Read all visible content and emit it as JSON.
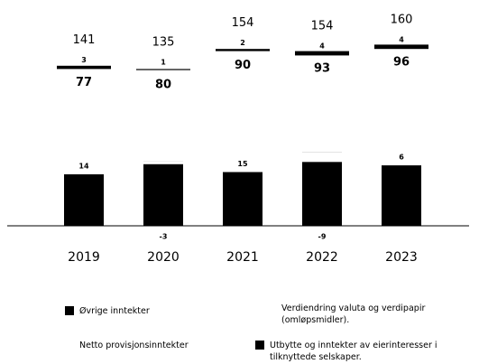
{
  "chart_data": {
    "type": "bar",
    "categories": [
      "2019",
      "2020",
      "2021",
      "2022",
      "2023"
    ],
    "series": [
      {
        "name": "Øvrige inntekter",
        "color": "#000000",
        "values": [
          3,
          1,
          2,
          4,
          4
        ]
      },
      {
        "name": "Verdiendring valuta og verdipapir (omløpsmidler).",
        "color": "#ffffff",
        "values": [
          14,
          -3,
          15,
          -9,
          6
        ]
      },
      {
        "name": "Netto provisjonsinntekter",
        "color": "#ffffff",
        "values": [
          77,
          80,
          90,
          93,
          96
        ]
      },
      {
        "name": "Utbytte og inntekter av eierinteresser i tilknyttede selskaper.",
        "color": "#000000",
        "values": [
          46,
          58,
          48,
          66,
          54
        ]
      }
    ],
    "totals": [
      141,
      135,
      154,
      154,
      160
    ]
  }
}
